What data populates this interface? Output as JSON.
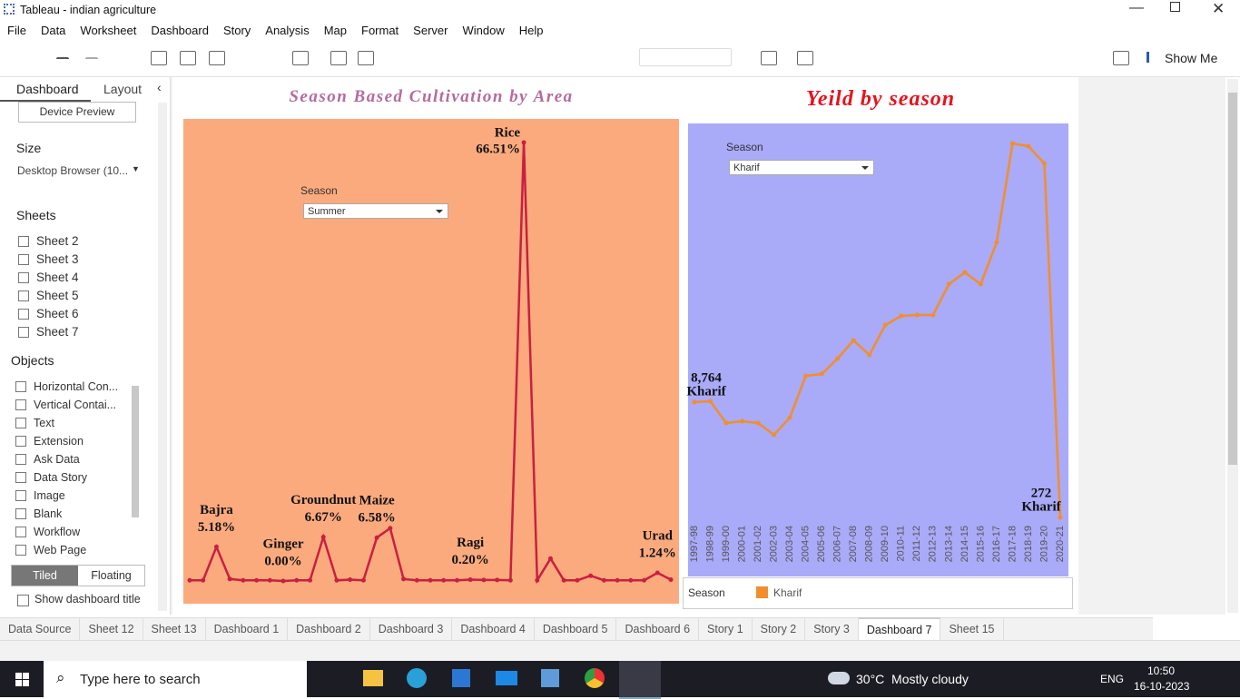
{
  "window": {
    "title": "Tableau - indian agriculture"
  },
  "menu": [
    "File",
    "Data",
    "Worksheet",
    "Dashboard",
    "Story",
    "Analysis",
    "Map",
    "Format",
    "Server",
    "Window",
    "Help"
  ],
  "toolbar": {
    "show_me": "Show Me"
  },
  "side_panel": {
    "tabs": [
      "Dashboard",
      "Layout"
    ],
    "device_preview": "Device Preview",
    "size_heading": "Size",
    "size_value": "Desktop Browser (10...",
    "sheets_heading": "Sheets",
    "sheets": [
      "Sheet 2",
      "Sheet 3",
      "Sheet 4",
      "Sheet 5",
      "Sheet 6",
      "Sheet 7"
    ],
    "objects_heading": "Objects",
    "objects": [
      "Horizontal Con...",
      "Vertical Contai...",
      "Text",
      "Extension",
      "Ask Data",
      "Data Story",
      "Image",
      "Blank",
      "Workflow",
      "Web Page"
    ],
    "layout_modes": [
      "Tiled",
      "Floating"
    ],
    "show_title": "Show dashboard title"
  },
  "chart_data": [
    {
      "type": "line",
      "title": "Season Based Cultivation by Area",
      "filter": {
        "label": "Season",
        "value": "Summer"
      },
      "color": "#c8203f",
      "plot_background": "#fbaa7e",
      "categories": [
        null,
        null,
        "Bajra",
        null,
        null,
        null,
        null,
        "Ginger",
        null,
        null,
        "Groundnut",
        null,
        null,
        null,
        "Maize",
        null,
        null,
        null,
        null,
        null,
        null,
        "Ragi",
        null,
        null,
        null,
        "Rice",
        null,
        null,
        null,
        null,
        null,
        null,
        null,
        null,
        null,
        "Urad",
        null
      ],
      "values": [
        0.1,
        0.1,
        5.18,
        0.3,
        0.1,
        0.1,
        0.1,
        0.0,
        0.1,
        0.1,
        6.67,
        0.1,
        0.2,
        0.1,
        6.58,
        8.0,
        0.3,
        0.1,
        0.1,
        0.1,
        0.1,
        0.2,
        0.15,
        0.15,
        0.1,
        66.51,
        0.1,
        3.4,
        0.1,
        0.1,
        0.8,
        0.1,
        0.1,
        0.1,
        0.1,
        1.24,
        0.2
      ],
      "value_labels": [
        null,
        null,
        "5.18%",
        null,
        null,
        null,
        null,
        "0.00%",
        null,
        null,
        "6.67%",
        null,
        null,
        null,
        "6.58%",
        null,
        null,
        null,
        null,
        null,
        null,
        "0.20%",
        null,
        null,
        null,
        "66.51%",
        null,
        null,
        null,
        null,
        null,
        null,
        null,
        null,
        null,
        "1.24%",
        null
      ]
    },
    {
      "type": "line",
      "title": "Yeild by season",
      "filter": {
        "label": "Season",
        "value": "Kharif"
      },
      "legend_title": "Season",
      "plot_background": "#a9aaf8",
      "categories": [
        "1997-98",
        "1998-99",
        "1999-00",
        "2000-01",
        "2001-02",
        "2002-03",
        "2003-04",
        "2004-05",
        "2005-06",
        "2006-07",
        "2007-08",
        "2008-09",
        "2009-10",
        "2010-11",
        "2011-12",
        "2012-13",
        "2013-14",
        "2014-15",
        "2015-16",
        "2016-17",
        "2017-18",
        "2018-19",
        "2019-20",
        "2020-21"
      ],
      "series": [
        {
          "name": "Kharif",
          "color": "#f28e2b",
          "values": [
            8764,
            8826,
            7221,
            7355,
            7221,
            6352,
            7622,
            10698,
            10831,
            11968,
            13305,
            12235,
            14442,
            15110,
            15177,
            15177,
            17450,
            18320,
            17450,
            20526,
            27814,
            27613,
            26343,
            272
          ],
          "value_labels": [
            "8,764",
            null,
            null,
            null,
            null,
            null,
            null,
            null,
            null,
            null,
            null,
            null,
            null,
            null,
            null,
            null,
            null,
            null,
            null,
            null,
            null,
            null,
            null,
            "272"
          ]
        }
      ]
    }
  ],
  "tabs": [
    "Data Source",
    "Sheet 12",
    "Sheet 13",
    "Dashboard 1",
    "Dashboard 2",
    "Dashboard 3",
    "Dashboard 4",
    "Dashboard 5",
    "Dashboard 6",
    "Story 1",
    "Story 2",
    "Story 3",
    "Dashboard 7",
    "Sheet 15"
  ],
  "taskbar": {
    "search": "Type here to search",
    "weather": "30°C  Mostly cloudy",
    "language": "ENG",
    "time": "10:50",
    "date": "16-10-2023"
  }
}
